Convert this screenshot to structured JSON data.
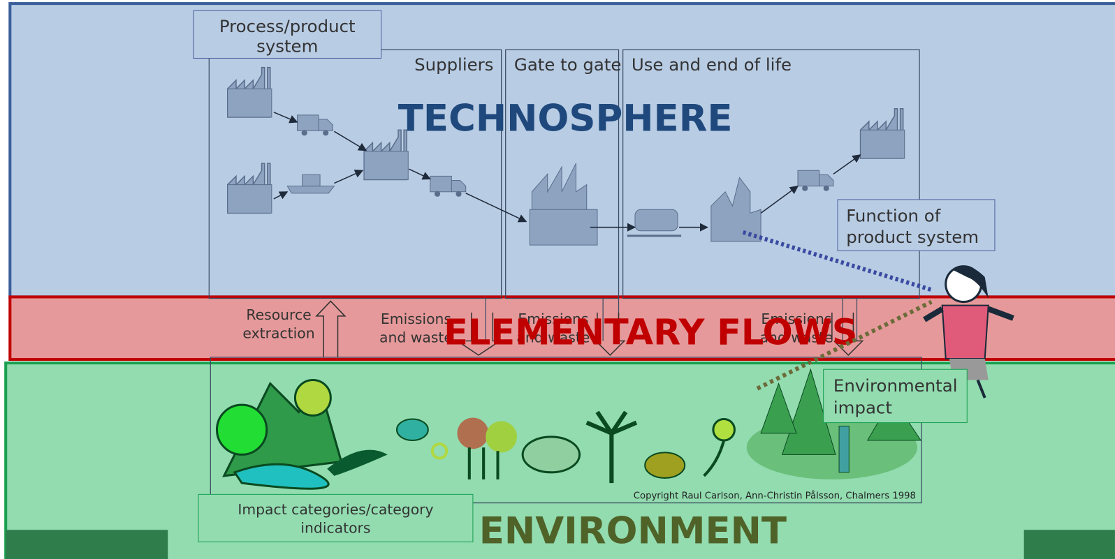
{
  "zones": {
    "technosphere": "TECHNOSPHERE",
    "elementary_flows": "ELEMENTARY FLOWS",
    "environment": "ENVIRONMENT"
  },
  "process_product_system": [
    "Process/product",
    "system"
  ],
  "stages": [
    "Suppliers",
    "Gate to gate",
    "Use and end of life"
  ],
  "resource_extraction": [
    "Resource",
    "extraction"
  ],
  "emissions": [
    [
      "Emissions",
      "and waste"
    ],
    [
      "Emissions",
      "and waste"
    ],
    [
      "Emissions",
      "and waste"
    ]
  ],
  "function_of_product_system": [
    "Function of",
    "product system"
  ],
  "environmental_impact": [
    "Environmental",
    "impact"
  ],
  "impact_categories": [
    "Impact categories/category",
    "indicators"
  ],
  "copyright": "Copyright Raul Carlson, Ann-Christin Pålsson, Chalmers 1998"
}
